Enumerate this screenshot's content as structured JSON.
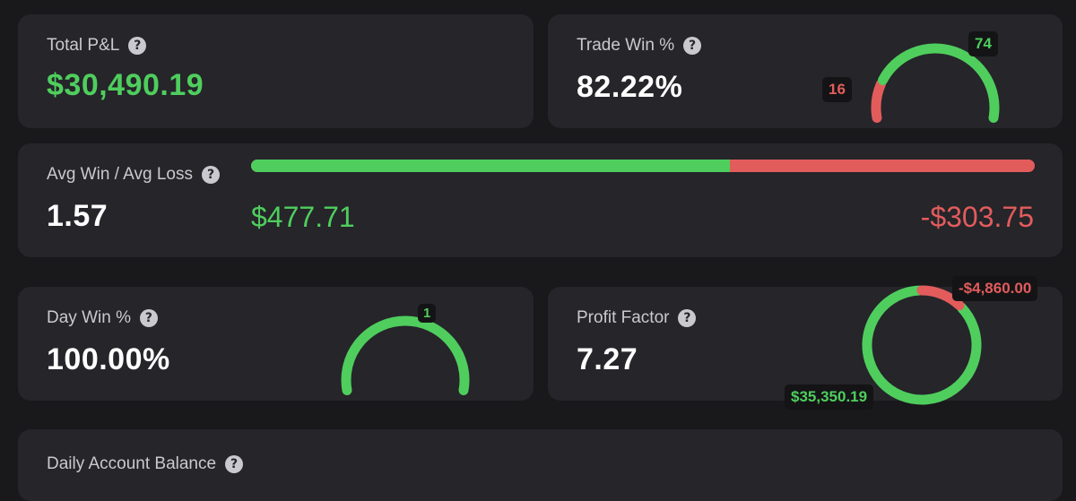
{
  "total_pnl": {
    "label": "Total P&L",
    "help": "?",
    "value": "$30,490.19"
  },
  "trade_win": {
    "label": "Trade Win %",
    "help": "?",
    "value": "82.22%",
    "wins": "74",
    "losses": "16",
    "win_fraction": 0.8222
  },
  "avg_win_loss": {
    "label": "Avg Win / Avg Loss",
    "help": "?",
    "value": "1.57",
    "avg_win": "$477.71",
    "avg_loss": "-$303.75",
    "win_share": 0.6113
  },
  "day_win": {
    "label": "Day Win %",
    "help": "?",
    "value": "100.00%",
    "wins": "1",
    "win_fraction": 1.0
  },
  "profit_factor": {
    "label": "Profit Factor",
    "help": "?",
    "value": "7.27",
    "gross_profit": "$35,350.19",
    "gross_loss": "-$4,860.00",
    "loss_fraction": 0.1209
  },
  "daily_balance": {
    "label": "Daily Account Balance",
    "help": "?"
  },
  "colors": {
    "green": "#4fce5d",
    "red": "#e25c5c",
    "card": "#25252a",
    "bg": "#19191c"
  }
}
